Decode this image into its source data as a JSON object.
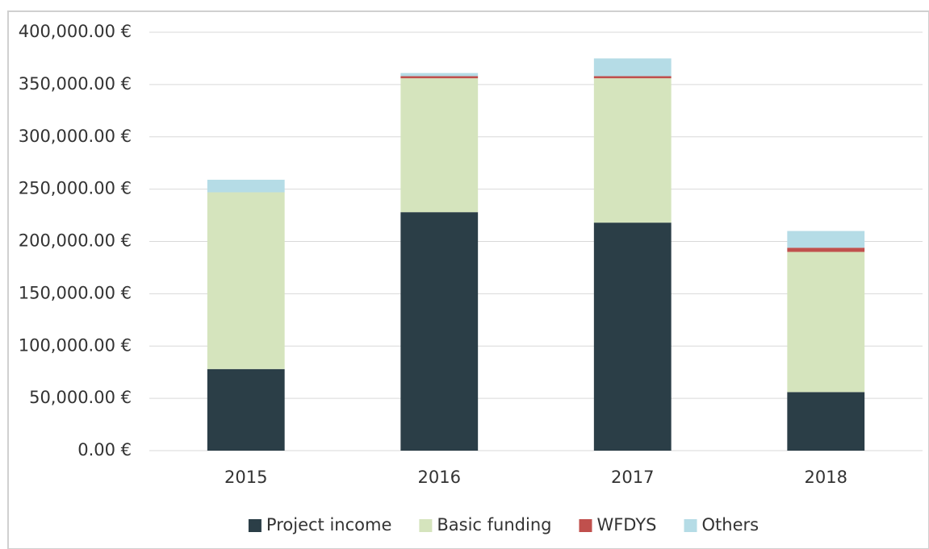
{
  "chart_data": {
    "type": "stacked_bar",
    "categories": [
      "2015",
      "2016",
      "2017",
      "2018"
    ],
    "series": [
      {
        "name": "Project income",
        "color": "#2b3e47",
        "values": [
          78000,
          228000,
          218000,
          56000
        ]
      },
      {
        "name": "Basic funding",
        "color": "#d5e4bd",
        "values": [
          169000,
          128000,
          138000,
          134000
        ]
      },
      {
        "name": "WFDYS",
        "color": "#c0504d",
        "values": [
          0,
          2000,
          2000,
          4000
        ]
      },
      {
        "name": "Others",
        "color": "#b5dce6",
        "values": [
          12000,
          3000,
          17000,
          16000
        ]
      }
    ],
    "ylim": [
      0,
      400000
    ],
    "yticks": [
      {
        "value": 0,
        "label": "0.00 €"
      },
      {
        "value": 50000,
        "label": "50,000.00 €"
      },
      {
        "value": 100000,
        "label": "100,000.00 €"
      },
      {
        "value": 150000,
        "label": "150,000.00 €"
      },
      {
        "value": 200000,
        "label": "200,000.00 €"
      },
      {
        "value": 250000,
        "label": "250,000.00 €"
      },
      {
        "value": 300000,
        "label": "300,000.00 €"
      },
      {
        "value": 350000,
        "label": "350,000.00 €"
      },
      {
        "value": 400000,
        "label": "400,000.00 €"
      }
    ],
    "grid": true,
    "legend": "bottom"
  }
}
